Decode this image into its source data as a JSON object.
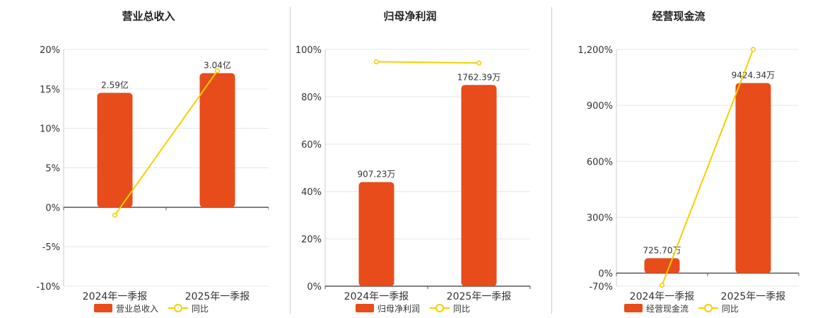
{
  "chart_data": [
    {
      "type": "bar",
      "title": "营业总收入",
      "categories": [
        "2024年一季报",
        "2025年一季报"
      ],
      "values": [
        14.5,
        17.0
      ],
      "value_labels": [
        "2.59亿",
        "3.04亿"
      ],
      "ylim": [
        -10,
        20
      ],
      "yticks": [
        -10,
        -5,
        0,
        5,
        10,
        15,
        20
      ],
      "ytick_labels": [
        "-10%",
        "-5%",
        "0%",
        "5%",
        "10%",
        "15%",
        "20%"
      ],
      "line_series": {
        "name": "同比",
        "values": [
          -1.0,
          17.3
        ]
      },
      "legend": {
        "bar": "营业总收入",
        "line": "同比"
      }
    },
    {
      "type": "bar",
      "title": "归母净利润",
      "categories": [
        "2024年一季报",
        "2025年一季报"
      ],
      "values": [
        44,
        85
      ],
      "value_labels": [
        "907.23万",
        "1762.39万"
      ],
      "ylim": [
        0,
        100
      ],
      "yticks": [
        0,
        20,
        40,
        60,
        80,
        100
      ],
      "ytick_labels": [
        "0%",
        "20%",
        "40%",
        "60%",
        "80%",
        "100%"
      ],
      "line_series": {
        "name": "同比",
        "values": [
          94.8,
          94.3
        ]
      },
      "legend": {
        "bar": "归母净利润",
        "line": "同比"
      }
    },
    {
      "type": "bar",
      "title": "经营现金流",
      "categories": [
        "2024年一季报",
        "2025年一季报"
      ],
      "values": [
        80,
        1020
      ],
      "value_labels": [
        "725.70万",
        "9424.34万"
      ],
      "ylim": [
        -70,
        1200
      ],
      "yticks": [
        -70,
        0,
        300,
        600,
        900,
        1200
      ],
      "ytick_labels": [
        "-70%",
        "0%",
        "300%",
        "600%",
        "900%",
        "1,200%"
      ],
      "line_series": {
        "name": "同比",
        "values": [
          -65,
          1200
        ]
      },
      "legend": {
        "bar": "经营现金流",
        "line": "同比"
      }
    }
  ],
  "colors": {
    "bar": "#e84c1b",
    "line": "#f5d000",
    "grid": "#e6e6e6",
    "axis": "#555555"
  }
}
